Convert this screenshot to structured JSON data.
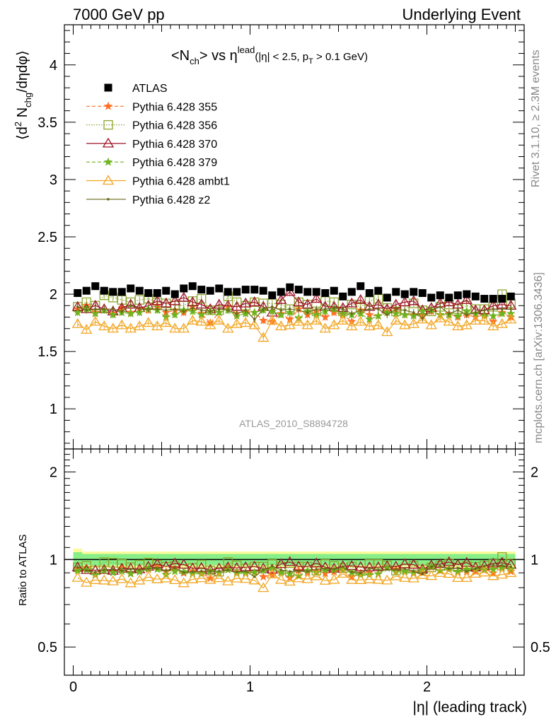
{
  "header": {
    "left_title": "7000 GeV pp",
    "right_title": "Underlying Event"
  },
  "plot": {
    "title": {
      "main_prefix": "<N",
      "main_sub": "ch",
      "main_mid": "> vs η",
      "main_sup": "lead",
      "cut_prefix": "(|η| < 2.5, p",
      "cut_sub": "T",
      "cut_suffix": " > 0.1 GeV)"
    },
    "ylabel_prefix": "⟨d",
    "ylabel_sup": "2",
    "ylabel_mid": " N",
    "ylabel_sub": "chg",
    "ylabel_suffix": "/dηdφ⟩",
    "ratio_ylabel": "Ratio to ATLAS",
    "xlabel": "|η| (leading track)",
    "analysis_id": "ATLAS_2010_S8894728",
    "side_text_top": "Rivet 3.1.10, ≥ 2.3M events",
    "side_text_bottom": "mcplots.cern.ch [arXiv:1306.3436]",
    "main_yticks": [
      "1",
      "1.5",
      "2",
      "2.5",
      "3",
      "3.5",
      "4"
    ],
    "ratio_yticks": [
      "0.5",
      "1",
      "2"
    ],
    "ratio_yticks_right": [
      "0.5",
      "1",
      "2"
    ],
    "xticks": [
      "0",
      "1",
      "2"
    ]
  },
  "chart_data": {
    "type": "scatter",
    "xlim": [
      -0.05,
      2.55
    ],
    "ylim": [
      0.65,
      4.35
    ],
    "ratio_ylim": [
      0.4,
      2.4
    ],
    "ratio_log_scale": true,
    "bin_width": 0.05,
    "x": [
      0.025,
      0.075,
      0.125,
      0.175,
      0.225,
      0.275,
      0.325,
      0.375,
      0.425,
      0.475,
      0.525,
      0.575,
      0.625,
      0.675,
      0.725,
      0.775,
      0.825,
      0.875,
      0.925,
      0.975,
      1.025,
      1.075,
      1.125,
      1.175,
      1.225,
      1.275,
      1.325,
      1.375,
      1.425,
      1.475,
      1.525,
      1.575,
      1.625,
      1.675,
      1.725,
      1.775,
      1.825,
      1.875,
      1.925,
      1.975,
      2.025,
      2.075,
      2.125,
      2.175,
      2.225,
      2.275,
      2.325,
      2.375,
      2.425,
      2.475
    ],
    "series": [
      {
        "name": "ATLAS",
        "style": "data",
        "color": "#000000",
        "values": [
          2.01,
          2.03,
          2.07,
          2.03,
          2.02,
          2.02,
          2.05,
          2.03,
          2.01,
          2.01,
          2.03,
          2.0,
          2.05,
          2.07,
          2.04,
          2.03,
          2.05,
          2.02,
          2.02,
          2.04,
          2.04,
          2.03,
          1.99,
          2.02,
          2.06,
          2.04,
          2.02,
          2.02,
          2.01,
          2.03,
          1.98,
          2.02,
          2.07,
          2.01,
          2.03,
          1.97,
          2.02,
          2.0,
          2.02,
          2.01,
          1.97,
          1.99,
          1.97,
          1.99,
          2.0,
          1.98,
          1.96,
          1.96,
          1.96,
          1.98
        ]
      },
      {
        "name": "Pythia 6.428 355",
        "style": "dashed",
        "marker": "star",
        "color": "#ff6f23",
        "values": [
          1.87,
          1.9,
          1.84,
          1.86,
          1.83,
          1.88,
          1.84,
          1.87,
          1.86,
          1.9,
          1.84,
          1.86,
          1.84,
          1.89,
          1.83,
          1.75,
          1.84,
          1.89,
          1.83,
          1.85,
          1.84,
          1.77,
          1.76,
          1.83,
          1.78,
          1.87,
          1.82,
          1.85,
          1.8,
          1.84,
          1.82,
          1.76,
          1.86,
          1.82,
          1.81,
          1.85,
          1.87,
          1.82,
          1.82,
          1.81,
          1.85,
          1.82,
          1.83,
          1.8,
          1.82,
          1.8,
          1.82,
          1.76,
          1.84,
          1.8
        ]
      },
      {
        "name": "Pythia 6.428 356",
        "style": "dotted",
        "marker": "open-square",
        "color": "#8ca62a",
        "values": [
          1.89,
          1.93,
          1.9,
          1.99,
          1.97,
          1.95,
          1.93,
          1.95,
          1.96,
          1.93,
          1.92,
          1.9,
          1.9,
          1.94,
          1.96,
          1.86,
          1.86,
          1.98,
          1.93,
          1.9,
          1.93,
          1.92,
          1.92,
          1.91,
          1.87,
          1.93,
          1.91,
          1.85,
          1.94,
          1.93,
          1.85,
          1.91,
          1.89,
          1.94,
          1.96,
          1.88,
          1.85,
          1.86,
          1.92,
          1.86,
          1.85,
          1.89,
          1.91,
          1.87,
          1.9,
          1.87,
          1.87,
          1.89,
          2.0,
          1.92
        ]
      },
      {
        "name": "Pythia 6.428 370",
        "style": "solid",
        "marker": "open-triangle",
        "color": "#9d1426",
        "values": [
          1.89,
          1.87,
          1.9,
          1.87,
          1.85,
          1.88,
          1.91,
          1.88,
          1.9,
          1.94,
          1.92,
          1.94,
          1.97,
          1.93,
          1.91,
          1.87,
          1.91,
          1.9,
          1.89,
          1.92,
          1.93,
          1.89,
          1.84,
          1.95,
          2.02,
          1.93,
          1.91,
          1.96,
          1.89,
          1.89,
          1.88,
          1.92,
          1.95,
          1.89,
          1.91,
          1.87,
          1.91,
          1.93,
          1.94,
          1.86,
          1.88,
          1.92,
          1.93,
          1.91,
          1.95,
          1.86,
          1.86,
          1.9,
          1.91,
          1.9
        ]
      },
      {
        "name": "Pythia 6.428 379",
        "style": "dashed",
        "marker": "star",
        "color": "#6fb41e",
        "values": [
          1.84,
          1.87,
          1.83,
          1.86,
          1.82,
          1.84,
          1.83,
          1.84,
          1.87,
          1.86,
          1.8,
          1.82,
          1.86,
          1.85,
          1.82,
          1.85,
          1.84,
          1.86,
          1.81,
          1.83,
          1.84,
          1.86,
          1.85,
          1.82,
          1.84,
          1.79,
          1.85,
          1.82,
          1.85,
          1.87,
          1.83,
          1.82,
          1.83,
          1.78,
          1.81,
          1.84,
          1.83,
          1.82,
          1.81,
          1.85,
          1.86,
          1.82,
          1.82,
          1.81,
          1.85,
          1.83,
          1.81,
          1.81,
          1.83,
          1.83
        ]
      },
      {
        "name": "Pythia 6.428 ambt1",
        "style": "solid",
        "marker": "open-triangle",
        "color": "#f2a623",
        "values": [
          1.74,
          1.69,
          1.76,
          1.72,
          1.7,
          1.73,
          1.7,
          1.72,
          1.75,
          1.72,
          1.75,
          1.7,
          1.7,
          1.77,
          1.76,
          1.73,
          1.77,
          1.7,
          1.74,
          1.75,
          1.73,
          1.62,
          1.77,
          1.72,
          1.73,
          1.76,
          1.73,
          1.77,
          1.7,
          1.73,
          1.77,
          1.72,
          1.76,
          1.72,
          1.73,
          1.67,
          1.77,
          1.73,
          1.74,
          1.78,
          1.73,
          1.79,
          1.76,
          1.72,
          1.73,
          1.77,
          1.77,
          1.72,
          1.74,
          1.78
        ]
      },
      {
        "name": "Pythia 6.428 z2",
        "style": "solid",
        "marker": "dot",
        "color": "#6a6a1a",
        "values": [
          1.89,
          1.86,
          1.87,
          1.87,
          1.87,
          1.85,
          1.9,
          1.87,
          1.87,
          1.87,
          1.86,
          1.87,
          1.85,
          1.88,
          1.86,
          1.85,
          1.87,
          1.86,
          1.83,
          1.86,
          1.78,
          1.87,
          1.89,
          1.86,
          1.87,
          1.86,
          1.84,
          1.87,
          1.87,
          1.88,
          1.87,
          1.83,
          1.86,
          1.87,
          1.87,
          1.82,
          1.87,
          1.86,
          1.84,
          1.79,
          1.86,
          1.89,
          1.83,
          1.86,
          1.82,
          1.84,
          1.86,
          1.87,
          1.87,
          1.87
        ]
      }
    ],
    "ratio_band": {
      "stat_color": "#88ee88",
      "syst_color": "#fafa9a"
    },
    "legend_position": "top-left"
  }
}
